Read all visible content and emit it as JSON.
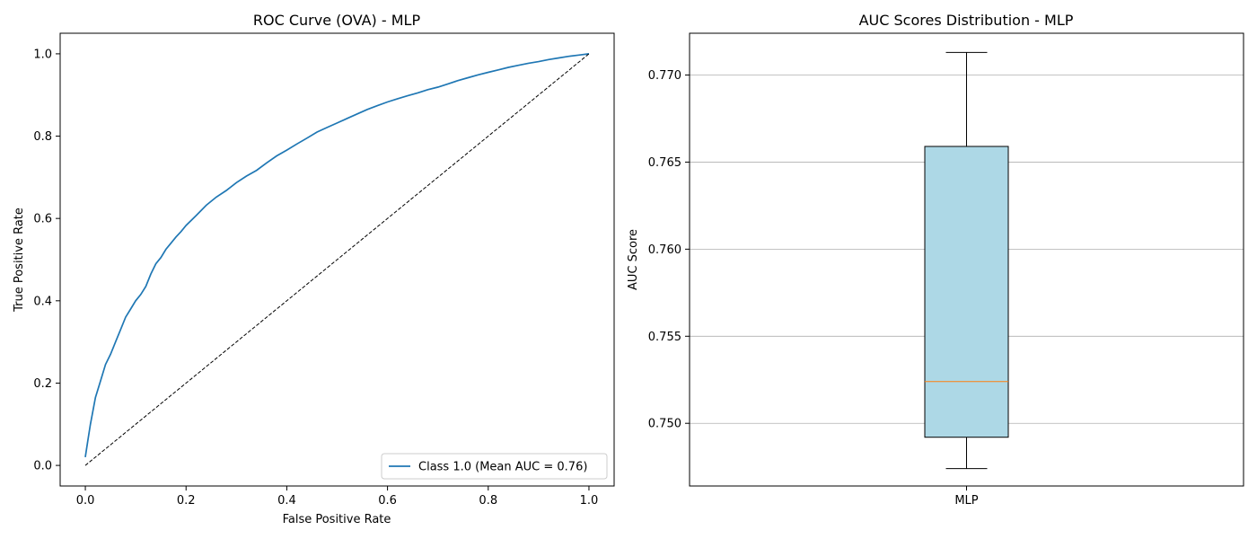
{
  "chart_data": [
    {
      "type": "line",
      "title": "ROC Curve (OVA) - MLP",
      "xlabel": "False Positive Rate",
      "ylabel": "True Positive Rate",
      "xlim": [
        -0.05,
        1.05
      ],
      "ylim": [
        -0.05,
        1.05
      ],
      "xticks": [
        0.0,
        0.2,
        0.4,
        0.6,
        0.8,
        1.0
      ],
      "yticks": [
        0.0,
        0.2,
        0.4,
        0.6,
        0.8,
        1.0
      ],
      "xtick_labels": [
        "0.0",
        "0.2",
        "0.4",
        "0.6",
        "0.8",
        "1.0"
      ],
      "ytick_labels": [
        "0.0",
        "0.2",
        "0.4",
        "0.6",
        "0.8",
        "1.0"
      ],
      "grid": false,
      "legend": {
        "position": "lower-right",
        "entries": [
          "Class 1.0 (Mean AUC = 0.76)"
        ]
      },
      "series": [
        {
          "name": "Class 1.0 (Mean AUC = 0.76)",
          "color": "#1f77b4",
          "style": "solid",
          "x": [
            0.0,
            0.005,
            0.01,
            0.02,
            0.03,
            0.04,
            0.05,
            0.06,
            0.07,
            0.08,
            0.09,
            0.1,
            0.11,
            0.12,
            0.13,
            0.14,
            0.15,
            0.16,
            0.17,
            0.18,
            0.19,
            0.2,
            0.22,
            0.24,
            0.26,
            0.28,
            0.3,
            0.32,
            0.34,
            0.36,
            0.38,
            0.4,
            0.42,
            0.44,
            0.46,
            0.48,
            0.5,
            0.52,
            0.54,
            0.56,
            0.58,
            0.6,
            0.62,
            0.64,
            0.66,
            0.68,
            0.7,
            0.72,
            0.74,
            0.76,
            0.78,
            0.8,
            0.82,
            0.84,
            0.86,
            0.88,
            0.9,
            0.92,
            0.94,
            0.96,
            0.98,
            1.0
          ],
          "y": [
            0.02,
            0.06,
            0.1,
            0.165,
            0.205,
            0.245,
            0.27,
            0.3,
            0.33,
            0.36,
            0.38,
            0.4,
            0.415,
            0.435,
            0.465,
            0.49,
            0.505,
            0.525,
            0.54,
            0.555,
            0.568,
            0.583,
            0.607,
            0.632,
            0.652,
            0.668,
            0.687,
            0.703,
            0.717,
            0.735,
            0.752,
            0.766,
            0.781,
            0.795,
            0.81,
            0.821,
            0.832,
            0.843,
            0.854,
            0.865,
            0.874,
            0.883,
            0.891,
            0.898,
            0.905,
            0.913,
            0.919,
            0.927,
            0.935,
            0.942,
            0.949,
            0.955,
            0.961,
            0.967,
            0.972,
            0.977,
            0.981,
            0.986,
            0.99,
            0.994,
            0.997,
            1.0
          ]
        },
        {
          "name": "",
          "color": "#000000",
          "style": "dashed",
          "x": [
            0.0,
            1.0
          ],
          "y": [
            0.0,
            1.0
          ]
        }
      ]
    },
    {
      "type": "box",
      "title": "AUC Scores Distribution - MLP",
      "xlabel": "",
      "ylabel": "AUC Score",
      "categories": [
        "MLP"
      ],
      "ylim": [
        0.7464,
        0.7724
      ],
      "yticks": [
        0.75,
        0.755,
        0.76,
        0.765,
        0.77
      ],
      "ytick_labels": [
        "0.750",
        "0.755",
        "0.760",
        "0.765",
        "0.770"
      ],
      "grid": "y",
      "boxes": [
        {
          "category": "MLP",
          "whisker_low": 0.7474,
          "q1": 0.7492,
          "median": 0.7524,
          "q3": 0.7659,
          "whisker_high": 0.7713,
          "fill": "#add8e6",
          "median_color": "#ff7f0e"
        }
      ]
    }
  ]
}
